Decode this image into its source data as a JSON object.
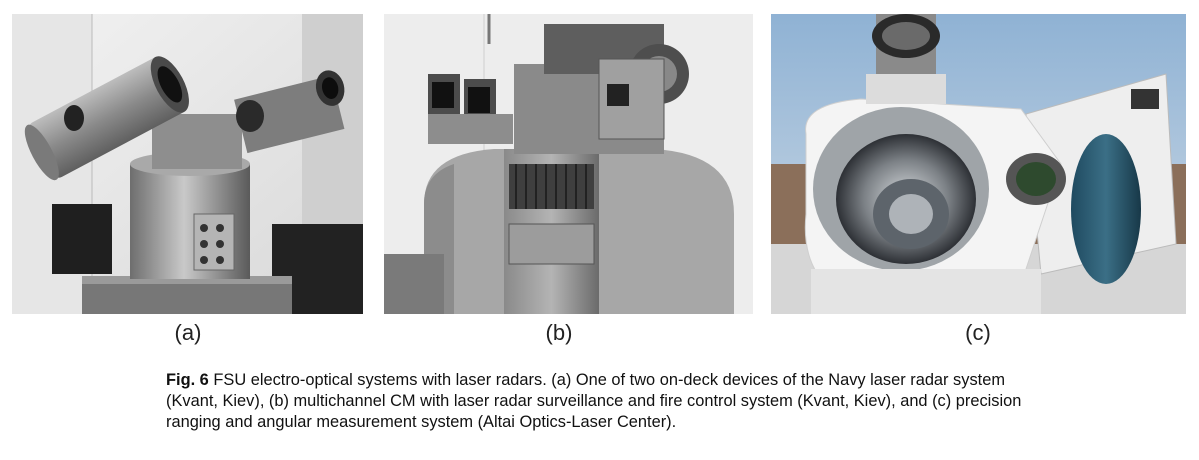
{
  "figure": {
    "panels": [
      {
        "label": "(a)"
      },
      {
        "label": "(b)"
      },
      {
        "label": "(c)"
      }
    ],
    "caption": {
      "figure_number": "Fig. 6",
      "text": "FSU electro-optical systems with laser radars. (a) One of two on-deck devices of the Navy laser radar system (Kvant, Kiev), (b) multichannel CM with laser radar surveillance and fire control system (Kvant, Kiev), and (c) precision ranging and angular measurement system (Altai Optics-Laser Center)."
    }
  }
}
